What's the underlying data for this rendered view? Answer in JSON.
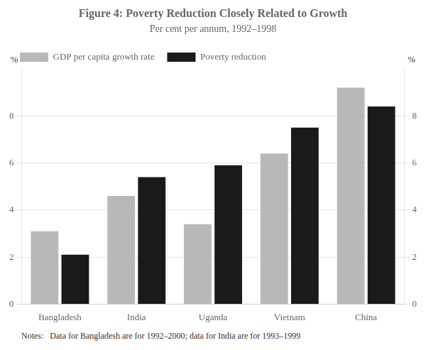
{
  "chart_data": {
    "type": "bar",
    "title": "Figure 4: Poverty Reduction Closely Related to Growth",
    "subtitle": "Per cent per annum, 1992–1998",
    "categories": [
      "Bangladesh",
      "India",
      "Uganda",
      "Vietnam",
      "China"
    ],
    "series": [
      {
        "name": "GDP per capita growth rate",
        "color": "#b8b8b8",
        "values": [
          3.1,
          4.6,
          3.4,
          6.4,
          9.2
        ]
      },
      {
        "name": "Poverty reduction",
        "color": "#1a1a1a",
        "values": [
          2.1,
          5.4,
          5.9,
          7.5,
          8.4
        ]
      }
    ],
    "ylabel": "%",
    "y2label": "%",
    "ylim": [
      0,
      10
    ],
    "yticks": [
      0,
      2,
      4,
      6,
      8
    ],
    "y2lim": [
      0,
      10
    ],
    "y2ticks": [
      0,
      2,
      4,
      6,
      8
    ],
    "grid": true,
    "legend": "upper left",
    "annotations": [
      "Notes:   Data for Bangladesh are for 1992–2000; data for India are for 1993–1999"
    ]
  }
}
